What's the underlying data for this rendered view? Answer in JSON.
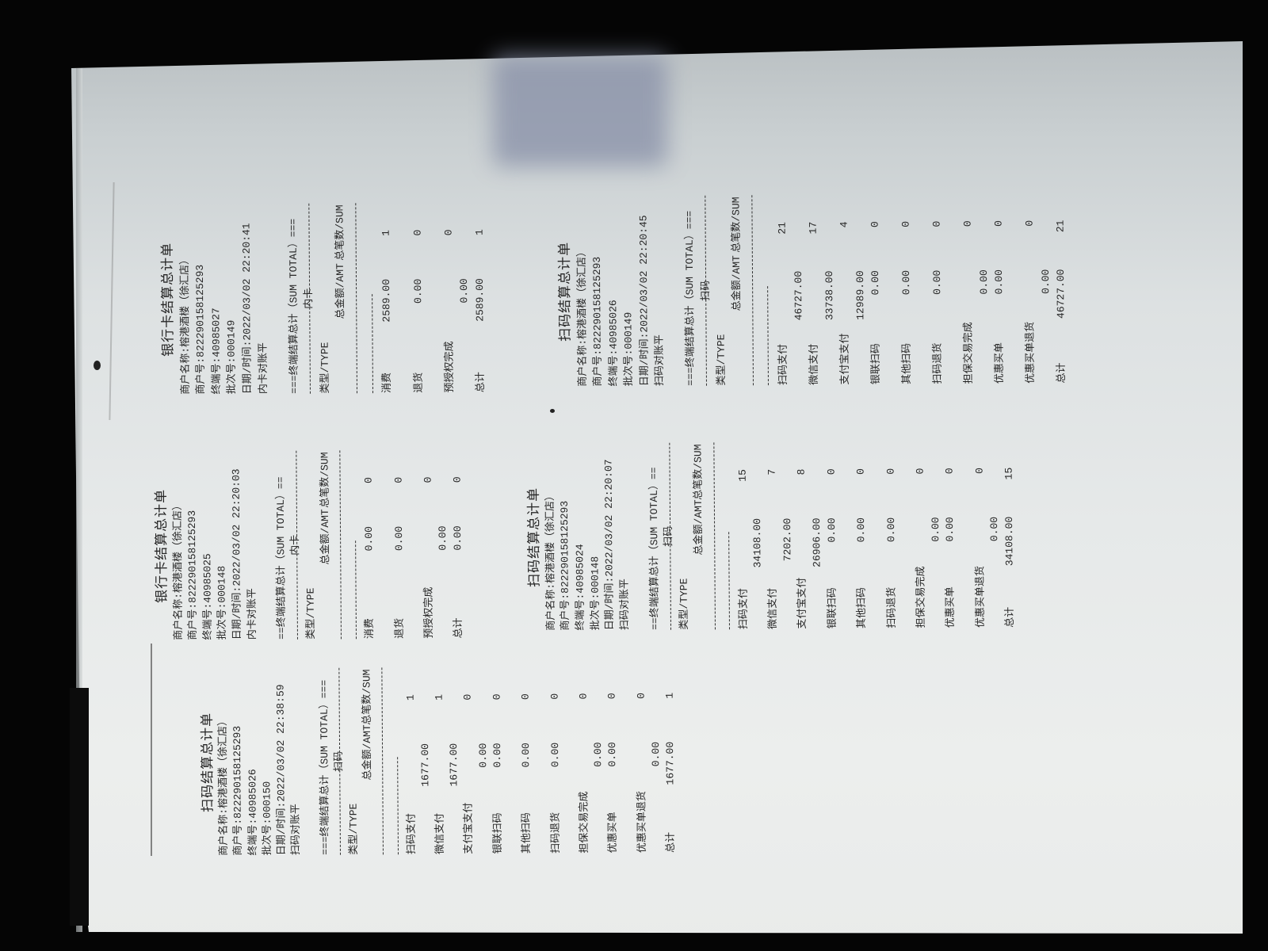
{
  "document": {
    "receipts": [
      {
        "title": "扫码结算总计单",
        "merchant_name": "商户名称:榕港酒楼（徐汇店）",
        "merchant_no": "商户号:822290158125293",
        "terminal_no": "终端号:40985026",
        "batch_no": "批次号:000150",
        "datetime": "日期/时间:2022/03/02 22:38:59",
        "reconcile": "扫码对账平",
        "sum_total_header": "===终端结算总计（SUM TOTAL）===",
        "channel": "扫码",
        "type_label": "类型/TYPE",
        "amt_label": "总金额/AMT",
        "sum_label": "总笔数/SUM",
        "rows": [
          {
            "label": "扫码支付",
            "amount": "1677.00",
            "count": "1"
          },
          {
            "label": "微信支付",
            "amount": "1677.00",
            "count": "1"
          },
          {
            "label": "支付宝支付",
            "amount": "0.00",
            "count": "0"
          },
          {
            "label": "银联扫码",
            "amount": "0.00",
            "count": "0"
          },
          {
            "label": "其他扫码",
            "amount": "0.00",
            "count": "0"
          },
          {
            "label": "扫码退货",
            "amount": "0.00",
            "count": "0"
          },
          {
            "label": "担保交易完成",
            "amount": "0.00",
            "count": "0"
          },
          {
            "label": "优惠买单",
            "amount": "0.00",
            "count": "0"
          },
          {
            "label": "优惠买单退货",
            "amount": "0.00",
            "count": "0"
          }
        ],
        "total": {
          "label": "总计",
          "amount": "1677.00",
          "count": "1"
        }
      },
      {
        "title": "银行卡结算总计单",
        "merchant_name": "商户名称:榕港酒楼（徐汇店）",
        "merchant_no": "商户号:822290158125293",
        "terminal_no": "终端号:40985025",
        "batch_no": "批次号:000148",
        "datetime": "日期/时间:2022/03/02 22:20:03",
        "reconcile": "内卡对账平",
        "sum_total_header": "==终端结算总计（SUM TOTAL）==",
        "channel": "内卡",
        "type_label": "类型/TYPE",
        "amt_label": "总金额/AMT",
        "sum_label": "总笔数/SUM",
        "rows": [
          {
            "label": "消费",
            "amount": "0.00",
            "count": "0"
          },
          {
            "label": "退货",
            "amount": "0.00",
            "count": "0"
          },
          {
            "label": "预授权完成",
            "amount": "0.00",
            "count": "0"
          }
        ],
        "total": {
          "label": "总计",
          "amount": "0.00",
          "count": "0"
        }
      },
      {
        "title": "扫码结算总计单",
        "merchant_name": "商户名称:榕港酒楼（徐汇店）",
        "merchant_no": "商户号:822290158125293",
        "terminal_no": "终端号:40985024",
        "batch_no": "批次号:000148",
        "datetime": "日期/时间:2022/03/02 22:20:07",
        "reconcile": "扫码对账平",
        "sum_total_header": "==终端结算总计（SUM TOTAL）==",
        "channel": "扫码",
        "type_label": "类型/TYPE",
        "amt_label": "总金额/AMT",
        "sum_label": "总笔数/SUM",
        "rows": [
          {
            "label": "扫码支付",
            "amount": "34108.00",
            "count": "15"
          },
          {
            "label": "微信支付",
            "amount": "7202.00",
            "count": "7"
          },
          {
            "label": "支付宝支付",
            "amount": "26906.00",
            "count": "8"
          },
          {
            "label": "银联扫码",
            "amount": "0.00",
            "count": "0"
          },
          {
            "label": "其他扫码",
            "amount": "0.00",
            "count": "0"
          },
          {
            "label": "扫码退货",
            "amount": "0.00",
            "count": "0"
          },
          {
            "label": "担保交易完成",
            "amount": "0.00",
            "count": "0"
          },
          {
            "label": "优惠买单",
            "amount": "0.00",
            "count": "0"
          },
          {
            "label": "优惠买单退货",
            "amount": "0.00",
            "count": "0"
          }
        ],
        "total": {
          "label": "总计",
          "amount": "34108.00",
          "count": "15"
        }
      },
      {
        "title": "银行卡结算总计单",
        "merchant_name": "商户名称:榕港酒楼（徐汇店）",
        "merchant_no": "商户号:822290158125293",
        "terminal_no": "终端号:40985027",
        "batch_no": "批次号:000149",
        "datetime": "日期/时间:2022/03/02 22:20:41",
        "reconcile": "内卡对账平",
        "sum_total_header": "===终端结算总计（SUM TOTAL）===",
        "channel": "内卡",
        "type_label": "类型/TYPE",
        "amt_label": "总金额/AMT",
        "sum_label": "总笔数/SUM",
        "rows": [
          {
            "label": "消费",
            "amount": "2589.00",
            "count": "1"
          },
          {
            "label": "退货",
            "amount": "0.00",
            "count": "0"
          },
          {
            "label": "预授权完成",
            "amount": "0.00",
            "count": "0"
          }
        ],
        "total": {
          "label": "总计",
          "amount": "2589.00",
          "count": "1"
        }
      },
      {
        "title": "扫码结算总计单",
        "merchant_name": "商户名称:榕港酒楼（徐汇店）",
        "merchant_no": "商户号:822290158125293",
        "terminal_no": "终端号:40985026",
        "batch_no": "批次号:000149",
        "datetime": "日期/时间:2022/03/02 22:20:45",
        "reconcile": "扫码对账平",
        "sum_total_header": "===终端结算总计（SUM TOTAL）===",
        "channel": "扫码",
        "type_label": "类型/TYPE",
        "amt_label": "总金额/AMT",
        "sum_label": "总笔数/SUM",
        "rows": [
          {
            "label": "扫码支付",
            "amount": "46727.00",
            "count": "21"
          },
          {
            "label": "微信支付",
            "amount": "33738.00",
            "count": "17"
          },
          {
            "label": "支付宝支付",
            "amount": "12989.00",
            "count": "4"
          },
          {
            "label": "银联扫码",
            "amount": "0.00",
            "count": "0"
          },
          {
            "label": "其他扫码",
            "amount": "0.00",
            "count": "0"
          },
          {
            "label": "扫码退货",
            "amount": "0.00",
            "count": "0"
          },
          {
            "label": "担保交易完成",
            "amount": "0.00",
            "count": "0"
          },
          {
            "label": "优惠买单",
            "amount": "0.00",
            "count": "0"
          },
          {
            "label": "优惠买单退货",
            "amount": "0.00",
            "count": "0"
          }
        ],
        "total": {
          "label": "总计",
          "amount": "46727.00",
          "count": "21"
        }
      }
    ]
  }
}
